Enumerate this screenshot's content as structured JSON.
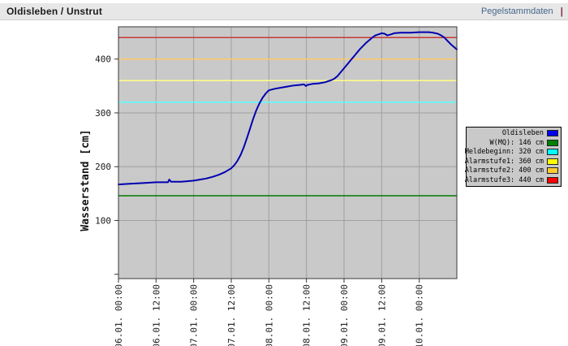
{
  "header": {
    "title": "Oldisleben / Unstrut",
    "link": "Pegelstammdaten",
    "separator": "|"
  },
  "legend": {
    "entries": [
      {
        "label": "Oldisleben",
        "color": "#0000ee"
      },
      {
        "label": "W(MQ): 146 cm",
        "color": "#008000"
      },
      {
        "label": "Meldebeginn: 320 cm",
        "color": "#00ffff"
      },
      {
        "label": "Alarmstufe1: 360 cm",
        "color": "#ffff00"
      },
      {
        "label": "Alarmstufe2: 400 cm",
        "color": "#ffcc33"
      },
      {
        "label": "Alarmstufe3: 440 cm",
        "color": "#ff0000"
      }
    ]
  },
  "chart_data": {
    "type": "line",
    "title": "",
    "xlabel": "",
    "ylabel": "Wasserstand [cm]",
    "x_unit": "hours from 06.01. 00:00",
    "xlim": [
      0,
      108
    ],
    "ylim": [
      -8,
      460
    ],
    "grid": true,
    "legend_position": "right",
    "background": "#c9c9c9",
    "grid_color": "#a0a0a0",
    "frame_color": "#3a3a3a",
    "y_ticks": [
      {
        "value": 0,
        "label": ""
      },
      {
        "value": 100,
        "label": "100"
      },
      {
        "value": 200,
        "label": "200"
      },
      {
        "value": 300,
        "label": "300"
      },
      {
        "value": 400,
        "label": "400"
      }
    ],
    "x_ticks": [
      {
        "hour": 0,
        "label": "06.01. 00:00"
      },
      {
        "hour": 12,
        "label": "06.01. 12:00"
      },
      {
        "hour": 24,
        "label": "07.01. 00:00"
      },
      {
        "hour": 36,
        "label": "07.01. 12:00"
      },
      {
        "hour": 48,
        "label": "08.01. 00:00"
      },
      {
        "hour": 60,
        "label": "08.01. 12:00"
      },
      {
        "hour": 72,
        "label": "09.01. 00:00"
      },
      {
        "hour": 84,
        "label": "09.01. 12:00"
      },
      {
        "hour": 96,
        "label": "10.01. 00:00"
      }
    ],
    "thresholds": [
      {
        "name": "W(MQ)",
        "value": 146,
        "color": "#007a00"
      },
      {
        "name": "Meldebeginn",
        "value": 320,
        "color": "#55ffff"
      },
      {
        "name": "Alarmstufe1",
        "value": 360,
        "color": "#ffff85"
      },
      {
        "name": "Alarmstufe2",
        "value": 400,
        "color": "#ffc966"
      },
      {
        "name": "Alarmstufe3",
        "value": 440,
        "color": "#c83737"
      }
    ],
    "series": [
      {
        "name": "Oldisleben",
        "color": "#0000b0",
        "points": [
          [
            0,
            167
          ],
          [
            3,
            168
          ],
          [
            6,
            169
          ],
          [
            9,
            170
          ],
          [
            12,
            171
          ],
          [
            15,
            171
          ],
          [
            15.8,
            171
          ],
          [
            16.2,
            176
          ],
          [
            16.8,
            172
          ],
          [
            18,
            172
          ],
          [
            20,
            172
          ],
          [
            22,
            173
          ],
          [
            24,
            174
          ],
          [
            26,
            176
          ],
          [
            28,
            178
          ],
          [
            30,
            181
          ],
          [
            32,
            185
          ],
          [
            34,
            190
          ],
          [
            36,
            197
          ],
          [
            37,
            203
          ],
          [
            38,
            211
          ],
          [
            39,
            222
          ],
          [
            40,
            236
          ],
          [
            41,
            253
          ],
          [
            42,
            271
          ],
          [
            43,
            289
          ],
          [
            44,
            305
          ],
          [
            45,
            318
          ],
          [
            46,
            328
          ],
          [
            47,
            336
          ],
          [
            48,
            342
          ],
          [
            50,
            345
          ],
          [
            52,
            347
          ],
          [
            54,
            349
          ],
          [
            56,
            351
          ],
          [
            58,
            352
          ],
          [
            59.2,
            353
          ],
          [
            59.8,
            350
          ],
          [
            60.4,
            352
          ],
          [
            62,
            354
          ],
          [
            64,
            355
          ],
          [
            66,
            357
          ],
          [
            68,
            361
          ],
          [
            69,
            364
          ],
          [
            70,
            369
          ],
          [
            71,
            376
          ],
          [
            72,
            383
          ],
          [
            73,
            390
          ],
          [
            74,
            397
          ],
          [
            75,
            404
          ],
          [
            76,
            411
          ],
          [
            77,
            418
          ],
          [
            78,
            424
          ],
          [
            79,
            430
          ],
          [
            80,
            435
          ],
          [
            81,
            440
          ],
          [
            82,
            444
          ],
          [
            83,
            446
          ],
          [
            84,
            448
          ],
          [
            85,
            447
          ],
          [
            85.8,
            444
          ],
          [
            87,
            446
          ],
          [
            88,
            448
          ],
          [
            90,
            449
          ],
          [
            93,
            449
          ],
          [
            96,
            450
          ],
          [
            99,
            450
          ],
          [
            100.5,
            449
          ],
          [
            102,
            447
          ],
          [
            103,
            444
          ],
          [
            104,
            440
          ],
          [
            105,
            434
          ],
          [
            106,
            428
          ],
          [
            107,
            423
          ],
          [
            108,
            418
          ]
        ]
      }
    ]
  }
}
